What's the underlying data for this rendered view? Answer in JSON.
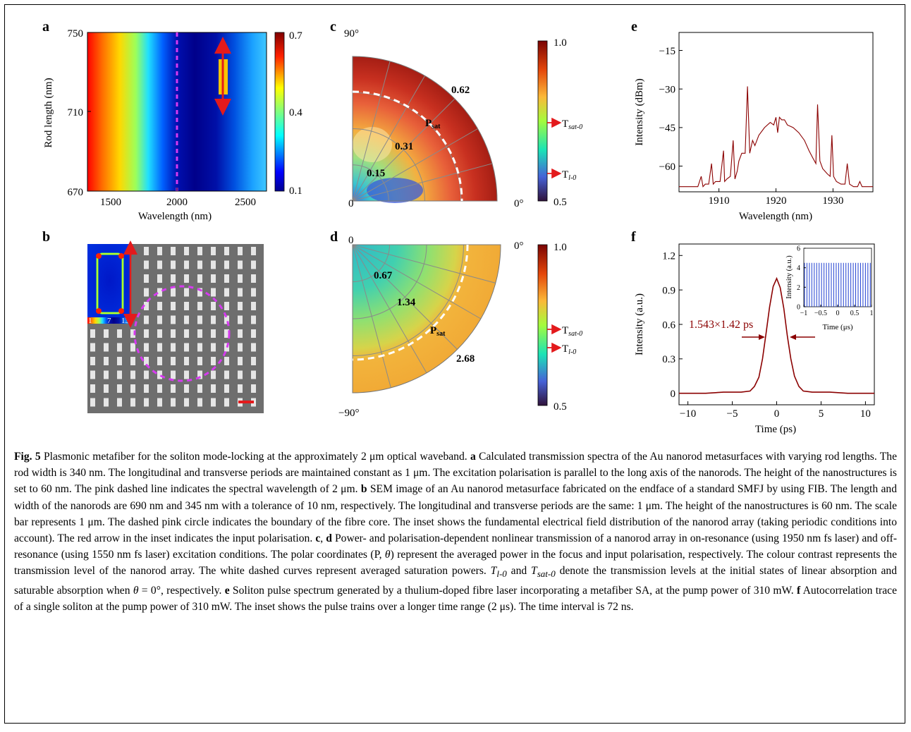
{
  "colors": {
    "accent_dark_red": "#8b0000",
    "magenta_dashed": "#d63af0",
    "arrow_red": "#e31a1c",
    "gold_bar": "#f7c500"
  },
  "panels": {
    "a": {
      "letter": "a",
      "ylabel": "Rod length (nm)",
      "xlabel": "Wavelength (nm)",
      "yticks": [
        "750",
        "710",
        "670"
      ],
      "xticks": [
        "1500",
        "2000",
        "2500"
      ],
      "colorbar_ticks": [
        "0.7",
        "0.4",
        "0.1"
      ]
    },
    "b": {
      "letter": "b",
      "inset_ticks": [
        "1",
        "7",
        "13"
      ]
    },
    "c": {
      "letter": "c",
      "angle_top": "90°",
      "angle_right": "0°",
      "origin": "0",
      "ring_labels": [
        "0.15",
        "0.31",
        "0.62"
      ],
      "sat_label_main": "P",
      "sat_label_sub": "sat",
      "colorbar_ticks": [
        "1.0",
        "0.5"
      ],
      "marker_sat": {
        "main": "T",
        "sub": "sat-0"
      },
      "marker_lin": {
        "main": "T",
        "sub": "l-0"
      }
    },
    "d": {
      "letter": "d",
      "origin": "0",
      "angle_right": "0°",
      "angle_bottom": "−90°",
      "ring_labels": [
        "0.67",
        "1.34",
        "2.68"
      ],
      "sat_label_main": "P",
      "sat_label_sub": "sat",
      "colorbar_ticks": [
        "1.0",
        "0.5"
      ],
      "marker_sat": {
        "main": "T",
        "sub": "sat-0"
      },
      "marker_lin": {
        "main": "T",
        "sub": "l-0"
      }
    },
    "e": {
      "letter": "e",
      "ylabel": "Intensity (dBm)",
      "xlabel": "Wavelength (nm)"
    },
    "f": {
      "letter": "f",
      "ylabel": "Intensity (a.u.)",
      "xlabel": "Time (ps)",
      "annotation": "1.543×1.42 ps",
      "inset": {
        "ylabel": "Intensity (a.u.)",
        "xlabel": "Time (μs)"
      }
    }
  },
  "chart_data": [
    {
      "panel": "e",
      "type": "line",
      "xlabel": "Wavelength (nm)",
      "ylabel": "Intensity (dBm)",
      "xlim": [
        1903,
        1937
      ],
      "ylim": [
        -70,
        -8
      ],
      "xticks": [
        1910,
        1920,
        1930
      ],
      "yticks": [
        -15,
        -30,
        -45,
        -60
      ],
      "tick_labels_x": [
        "1910",
        "1920",
        "1930"
      ],
      "tick_labels_y": [
        "−15",
        "−30",
        "−45",
        "−60"
      ],
      "color": "#8b0000",
      "x": [
        1903,
        1905,
        1906.3,
        1906.9,
        1907.2,
        1907.6,
        1908.2,
        1908.7,
        1909,
        1909.4,
        1910.2,
        1910.8,
        1911,
        1911.4,
        1912,
        1912.5,
        1912.8,
        1913.2,
        1913.5,
        1914,
        1914.6,
        1915,
        1915.4,
        1915.9,
        1916.3,
        1917,
        1918,
        1919,
        1919.6,
        1920,
        1920.3,
        1920.6,
        1921,
        1921.5,
        1922,
        1923,
        1924,
        1925,
        1925.8,
        1926.5,
        1927,
        1927.3,
        1927.7,
        1928.2,
        1929,
        1929.5,
        1929.8,
        1930.1,
        1930.6,
        1931.4,
        1932.1,
        1932.5,
        1932.9,
        1933.6,
        1934.3,
        1934.7,
        1935.1,
        1936,
        1937
      ],
      "y": [
        -68,
        -68,
        -68,
        -64,
        -68,
        -67,
        -67,
        -59,
        -67,
        -66,
        -66,
        -54,
        -66,
        -65,
        -64,
        -50,
        -65,
        -62,
        -58,
        -55,
        -55,
        -29,
        -55,
        -50,
        -52,
        -48,
        -45,
        -43,
        -44,
        -41,
        -47,
        -41,
        -42,
        -42,
        -44,
        -45,
        -47,
        -50,
        -54,
        -57,
        -59,
        -36,
        -58,
        -61,
        -63,
        -64,
        -48,
        -64,
        -66,
        -67,
        -67,
        -59,
        -67,
        -68,
        -68,
        -66,
        -68,
        -68,
        -68
      ]
    },
    {
      "panel": "f",
      "type": "line",
      "xlabel": "Time (ps)",
      "ylabel": "Intensity (a.u.)",
      "xlim": [
        -11,
        11
      ],
      "ylim": [
        -0.1,
        1.3
      ],
      "xticks": [
        -10,
        -5,
        0,
        5,
        10
      ],
      "yticks": [
        0,
        0.3,
        0.6,
        0.9,
        1.2
      ],
      "tick_labels_x": [
        "−10",
        "−5",
        "0",
        "5",
        "10"
      ],
      "tick_labels_y": [
        "0",
        "0.3",
        "0.6",
        "0.9",
        "1.2"
      ],
      "color": "#8b0000",
      "x": [
        -11,
        -8,
        -6,
        -4,
        -3,
        -2.5,
        -2,
        -1.6,
        -1.2,
        -0.8,
        -0.4,
        0,
        0.4,
        0.8,
        1.2,
        1.6,
        2,
        2.5,
        3,
        4,
        6,
        8,
        11
      ],
      "y": [
        0,
        0,
        0.01,
        0.01,
        0.02,
        0.06,
        0.14,
        0.3,
        0.52,
        0.75,
        0.93,
        1.0,
        0.92,
        0.74,
        0.5,
        0.3,
        0.15,
        0.06,
        0.02,
        0.01,
        0.01,
        0,
        0
      ]
    },
    {
      "panel": "f-inset",
      "type": "line",
      "xlabel": "Time (μs)",
      "ylabel": "Intensity (a.u.)",
      "xlim": [
        -1,
        1
      ],
      "ylim": [
        0,
        6
      ],
      "xticks": [
        -1,
        -0.5,
        0,
        0.5,
        1
      ],
      "yticks": [
        0,
        2,
        4,
        6
      ],
      "tick_labels_x": [
        "−1",
        "−0.5",
        "0",
        "0.5",
        "1"
      ],
      "tick_labels_y": [
        "0",
        "2",
        "4",
        "6"
      ],
      "color": "#1f3fd1",
      "pulse_interval_ns": 72,
      "pulse_height": 4.5
    }
  ],
  "caption": {
    "fig_label": "Fig. 5",
    "intro": " Plasmonic metafiber for the soliton mode-locking at the approximately 2 μm optical waveband. ",
    "a_label": "a",
    "a_text": " Calculated transmission spectra of the Au nanorod metasurfaces with varying rod lengths. The rod width is 340 nm. The longitudinal and transverse periods are maintained constant as 1 μm. The excitation polarisation is parallel to the long axis of the nanorods. The height of the nanostructures is set to 60 nm. The pink dashed line indicates the spectral wavelength of 2 μm. ",
    "b_label": "b",
    "b_text": " SEM image of an Au nanorod metasurface fabricated on the endface of a standard SMFJ by using FIB. The length and width of the nanorods are 690 nm and 345 nm with a tolerance of 10 nm, respectively. The longitudinal and transverse periods are the same: 1 μm. The height of the nanostructures is 60 nm. The scale bar represents 1 μm. The dashed pink circle indicates the boundary of the fibre core. The inset shows the fundamental electrical field distribution of the nanorod array (taking periodic conditions into account). The red arrow in the inset indicates the input polarisation. ",
    "cd_label_c": "c",
    "cd_sep": ", ",
    "cd_label_d": "d",
    "cd_text_1": " Power- and polarisation-dependent nonlinear transmission of a nanorod array in on-resonance (using 1950 nm fs laser) and off-resonance (using 1550 nm fs laser) excitation conditions. The polar coordinates (P, ",
    "theta": "θ",
    "cd_text_2": ") represent the averaged power in the focus and input polarisation, respectively. The colour contrast represents the transmission level of the nanorod array. The white dashed curves represent averaged saturation powers. ",
    "t_l0": "T",
    "t_l0_sub": "l-0",
    "cd_text_3": " and ",
    "t_sat0": "T",
    "t_sat0_sub": "sat-0",
    "cd_text_4": " denote the transmission levels at the initial states of linear absorption and saturable absorption when ",
    "theta2": "θ",
    "cd_text_5": " = 0°, respectively. ",
    "e_label": "e",
    "e_text": " Soliton pulse spectrum generated by a thulium-doped fibre laser incorporating a metafiber SA, at the pump power of 310 mW. ",
    "f_label": "f",
    "f_text": " Autocorrelation trace of a single soliton at the pump power of 310 mW. The inset shows the pulse trains over a longer time range (2 μs). The time interval is 72 ns."
  }
}
